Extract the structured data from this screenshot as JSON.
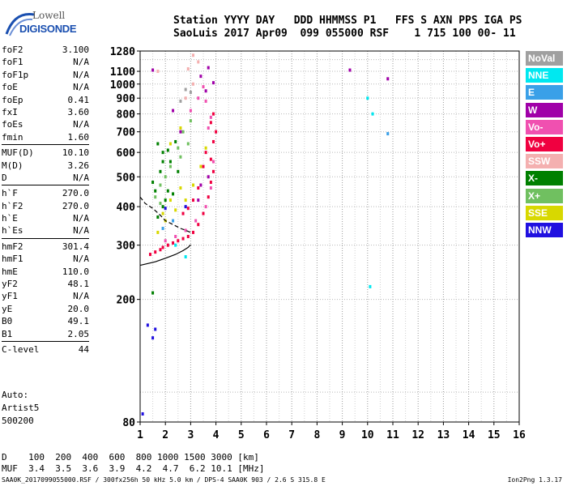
{
  "logo": {
    "top_text": "Lowell",
    "bottom_text": "DIGISONDE"
  },
  "header": {
    "line1": "Station YYYY DAY   DDD HHMMSS P1   FFS S AXN PPS IGA PS",
    "line2": "SaoLuis 2017 Apr09  099 055000 RSF    1 715 100 00- 11"
  },
  "params": {
    "group1": [
      {
        "name": "foF2",
        "value": "3.100"
      },
      {
        "name": "foF1",
        "value": "N/A"
      },
      {
        "name": "foF1p",
        "value": "N/A"
      },
      {
        "name": "foE",
        "value": "N/A"
      },
      {
        "name": "foEp",
        "value": "0.41"
      },
      {
        "name": "fxI",
        "value": "3.60"
      },
      {
        "name": "foEs",
        "value": "N/A"
      },
      {
        "name": "fmin",
        "value": "1.60"
      }
    ],
    "group2": [
      {
        "name": "MUF(D)",
        "value": "10.10"
      },
      {
        "name": "M(D)",
        "value": "3.26"
      },
      {
        "name": "D",
        "value": "N/A"
      }
    ],
    "group3": [
      {
        "name": "h`F",
        "value": "270.0"
      },
      {
        "name": "h`F2",
        "value": "270.0"
      },
      {
        "name": "h`E",
        "value": "N/A"
      },
      {
        "name": "h`Es",
        "value": "N/A"
      }
    ],
    "group4": [
      {
        "name": "hmF2",
        "value": "301.4"
      },
      {
        "name": "hmF1",
        "value": "N/A"
      },
      {
        "name": "hmE",
        "value": "110.0"
      },
      {
        "name": "yF2",
        "value": "48.1"
      },
      {
        "name": "yF1",
        "value": "N/A"
      },
      {
        "name": "yE",
        "value": "20.0"
      },
      {
        "name": "B0",
        "value": "49.1"
      },
      {
        "name": "B1",
        "value": "2.05"
      }
    ],
    "group5": [
      {
        "name": "C-level",
        "value": "44"
      }
    ]
  },
  "auto_block": {
    "line1": "Auto:",
    "line2": "Artist5",
    "line3": "500200"
  },
  "legend": [
    {
      "label": "NoVal",
      "color": "#a0a0a0"
    },
    {
      "label": "NNE",
      "color": "#00e8f0"
    },
    {
      "label": "E",
      "color": "#3aa0e8"
    },
    {
      "label": "W",
      "color": "#a000a8"
    },
    {
      "label": "Vo-",
      "color": "#f050b0"
    },
    {
      "label": "Vo+",
      "color": "#f00040"
    },
    {
      "label": "SSW",
      "color": "#f4b0b0"
    },
    {
      "label": "X-",
      "color": "#008000"
    },
    {
      "label": "X+",
      "color": "#70c060"
    },
    {
      "label": "SSE",
      "color": "#d8d800"
    },
    {
      "label": "NNW",
      "color": "#2010e0"
    }
  ],
  "muf_table": {
    "row1": "D    100  200  400  600  800 1000 1500 3000 [km]",
    "row2": "MUF  3.4  3.5  3.6  3.9  4.2  4.7  6.2 10.1 [MHz]"
  },
  "footer": {
    "left": "SAA0K_2017099055000.RSF / 300fx256h 50 kHz 5.0 km / DPS-4 SAA0K 903 / 2.6 S 315.8 E",
    "right": "Ion2Png 1.3.17"
  },
  "chart_data": {
    "type": "scatter",
    "xlim": [
      1,
      16
    ],
    "ylim": [
      80,
      1280
    ],
    "x_ticks": [
      1,
      2,
      3,
      4,
      5,
      6,
      7,
      8,
      9,
      10,
      11,
      12,
      13,
      14,
      15,
      16
    ],
    "y_ticks": [
      80,
      200,
      300,
      400,
      500,
      600,
      700,
      800,
      900,
      1000,
      1100,
      1280
    ],
    "grid": true,
    "y_scale": "log",
    "series": [
      {
        "color": "#a000a8",
        "points": [
          [
            9.3,
            1110
          ],
          [
            10.8,
            1040
          ],
          [
            1.5,
            1110
          ],
          [
            3.9,
            1010
          ],
          [
            3.6,
            950
          ],
          [
            3.4,
            1060
          ],
          [
            3.7,
            1130
          ],
          [
            2.3,
            820
          ],
          [
            2.6,
            700
          ],
          [
            3.4,
            470
          ],
          [
            3.7,
            500
          ],
          [
            3.3,
            420
          ]
        ]
      },
      {
        "color": "#f00040",
        "points": [
          [
            2.1,
            300
          ],
          [
            2.3,
            305
          ],
          [
            2.5,
            310
          ],
          [
            2.7,
            315
          ],
          [
            2.9,
            320
          ],
          [
            3.1,
            330
          ],
          [
            3.3,
            350
          ],
          [
            3.5,
            380
          ],
          [
            3.7,
            430
          ],
          [
            3.8,
            480
          ],
          [
            3.9,
            520
          ],
          [
            3.8,
            570
          ],
          [
            3.9,
            650
          ],
          [
            4.0,
            700
          ],
          [
            3.8,
            750
          ],
          [
            3.9,
            800
          ],
          [
            3.6,
            600
          ],
          [
            3.5,
            540
          ],
          [
            3.3,
            460
          ],
          [
            3.1,
            420
          ],
          [
            2.9,
            395
          ],
          [
            2.7,
            380
          ],
          [
            1.8,
            290
          ],
          [
            1.9,
            295
          ],
          [
            1.6,
            285
          ],
          [
            1.4,
            280
          ]
        ]
      },
      {
        "color": "#f050b0",
        "points": [
          [
            2.0,
            310
          ],
          [
            2.4,
            320
          ],
          [
            2.8,
            335
          ],
          [
            3.2,
            360
          ],
          [
            3.6,
            400
          ],
          [
            3.8,
            460
          ],
          [
            3.9,
            560
          ],
          [
            3.7,
            720
          ],
          [
            3.6,
            880
          ],
          [
            3.5,
            980
          ],
          [
            3.3,
            900
          ],
          [
            3.0,
            820
          ],
          [
            3.8,
            780
          ]
        ]
      },
      {
        "color": "#008000",
        "points": [
          [
            1.5,
            210
          ],
          [
            1.7,
            370
          ],
          [
            1.9,
            400
          ],
          [
            2.1,
            450
          ],
          [
            1.8,
            520
          ],
          [
            2.2,
            560
          ],
          [
            1.9,
            600
          ],
          [
            2.5,
            520
          ],
          [
            2.0,
            420
          ],
          [
            1.6,
            450
          ],
          [
            1.5,
            480
          ],
          [
            2.1,
            610
          ],
          [
            2.4,
            650
          ],
          [
            1.7,
            640
          ],
          [
            2.3,
            440
          ],
          [
            1.9,
            560
          ]
        ]
      },
      {
        "color": "#70c060",
        "points": [
          [
            1.6,
            430
          ],
          [
            1.8,
            470
          ],
          [
            2.0,
            500
          ],
          [
            2.2,
            540
          ],
          [
            2.6,
            580
          ],
          [
            2.9,
            640
          ],
          [
            2.7,
            700
          ],
          [
            3.0,
            760
          ],
          [
            2.5,
            620
          ],
          [
            1.8,
            410
          ]
        ]
      },
      {
        "color": "#d8d800",
        "points": [
          [
            1.7,
            330
          ],
          [
            2.0,
            360
          ],
          [
            2.4,
            390
          ],
          [
            2.8,
            420
          ],
          [
            3.1,
            470
          ],
          [
            3.4,
            540
          ],
          [
            3.6,
            620
          ],
          [
            2.6,
            460
          ],
          [
            2.2,
            420
          ],
          [
            1.9,
            380
          ],
          [
            2.2,
            640
          ],
          [
            2.6,
            720
          ]
        ]
      },
      {
        "color": "#2010e0",
        "points": [
          [
            1.6,
            160
          ],
          [
            1.5,
            150
          ],
          [
            2.0,
            395
          ],
          [
            2.8,
            400
          ],
          [
            1.1,
            85
          ],
          [
            1.3,
            165
          ]
        ]
      },
      {
        "color": "#00e8f0",
        "points": [
          [
            2.8,
            275
          ],
          [
            10.1,
            220
          ],
          [
            10.2,
            800
          ],
          [
            10.0,
            900
          ],
          [
            2.4,
            300
          ]
        ]
      },
      {
        "color": "#3aa0e8",
        "points": [
          [
            10.8,
            690
          ],
          [
            1.9,
            340
          ],
          [
            2.3,
            360
          ]
        ]
      },
      {
        "color": "#f4b0b0",
        "points": [
          [
            1.7,
            1100
          ],
          [
            2.9,
            1120
          ],
          [
            3.3,
            1180
          ],
          [
            3.1,
            1000
          ],
          [
            2.8,
            900
          ],
          [
            3.1,
            1240
          ]
        ]
      },
      {
        "color": "#a0a0a0",
        "points": [
          [
            2.8,
            960
          ],
          [
            3.0,
            940
          ],
          [
            2.6,
            880
          ]
        ]
      }
    ],
    "curves": [
      {
        "style": "solid",
        "points": [
          [
            1.0,
            258
          ],
          [
            1.6,
            265
          ],
          [
            2.0,
            272
          ],
          [
            2.4,
            280
          ],
          [
            2.7,
            288
          ],
          [
            2.9,
            295
          ],
          [
            3.0,
            301
          ]
        ]
      },
      {
        "style": "dashed",
        "points": [
          [
            1.0,
            430
          ],
          [
            1.2,
            410
          ],
          [
            1.5,
            395
          ],
          [
            1.8,
            375
          ],
          [
            2.0,
            360
          ],
          [
            2.3,
            350
          ],
          [
            2.6,
            340
          ],
          [
            2.8,
            335
          ],
          [
            3.0,
            330
          ]
        ]
      }
    ]
  }
}
